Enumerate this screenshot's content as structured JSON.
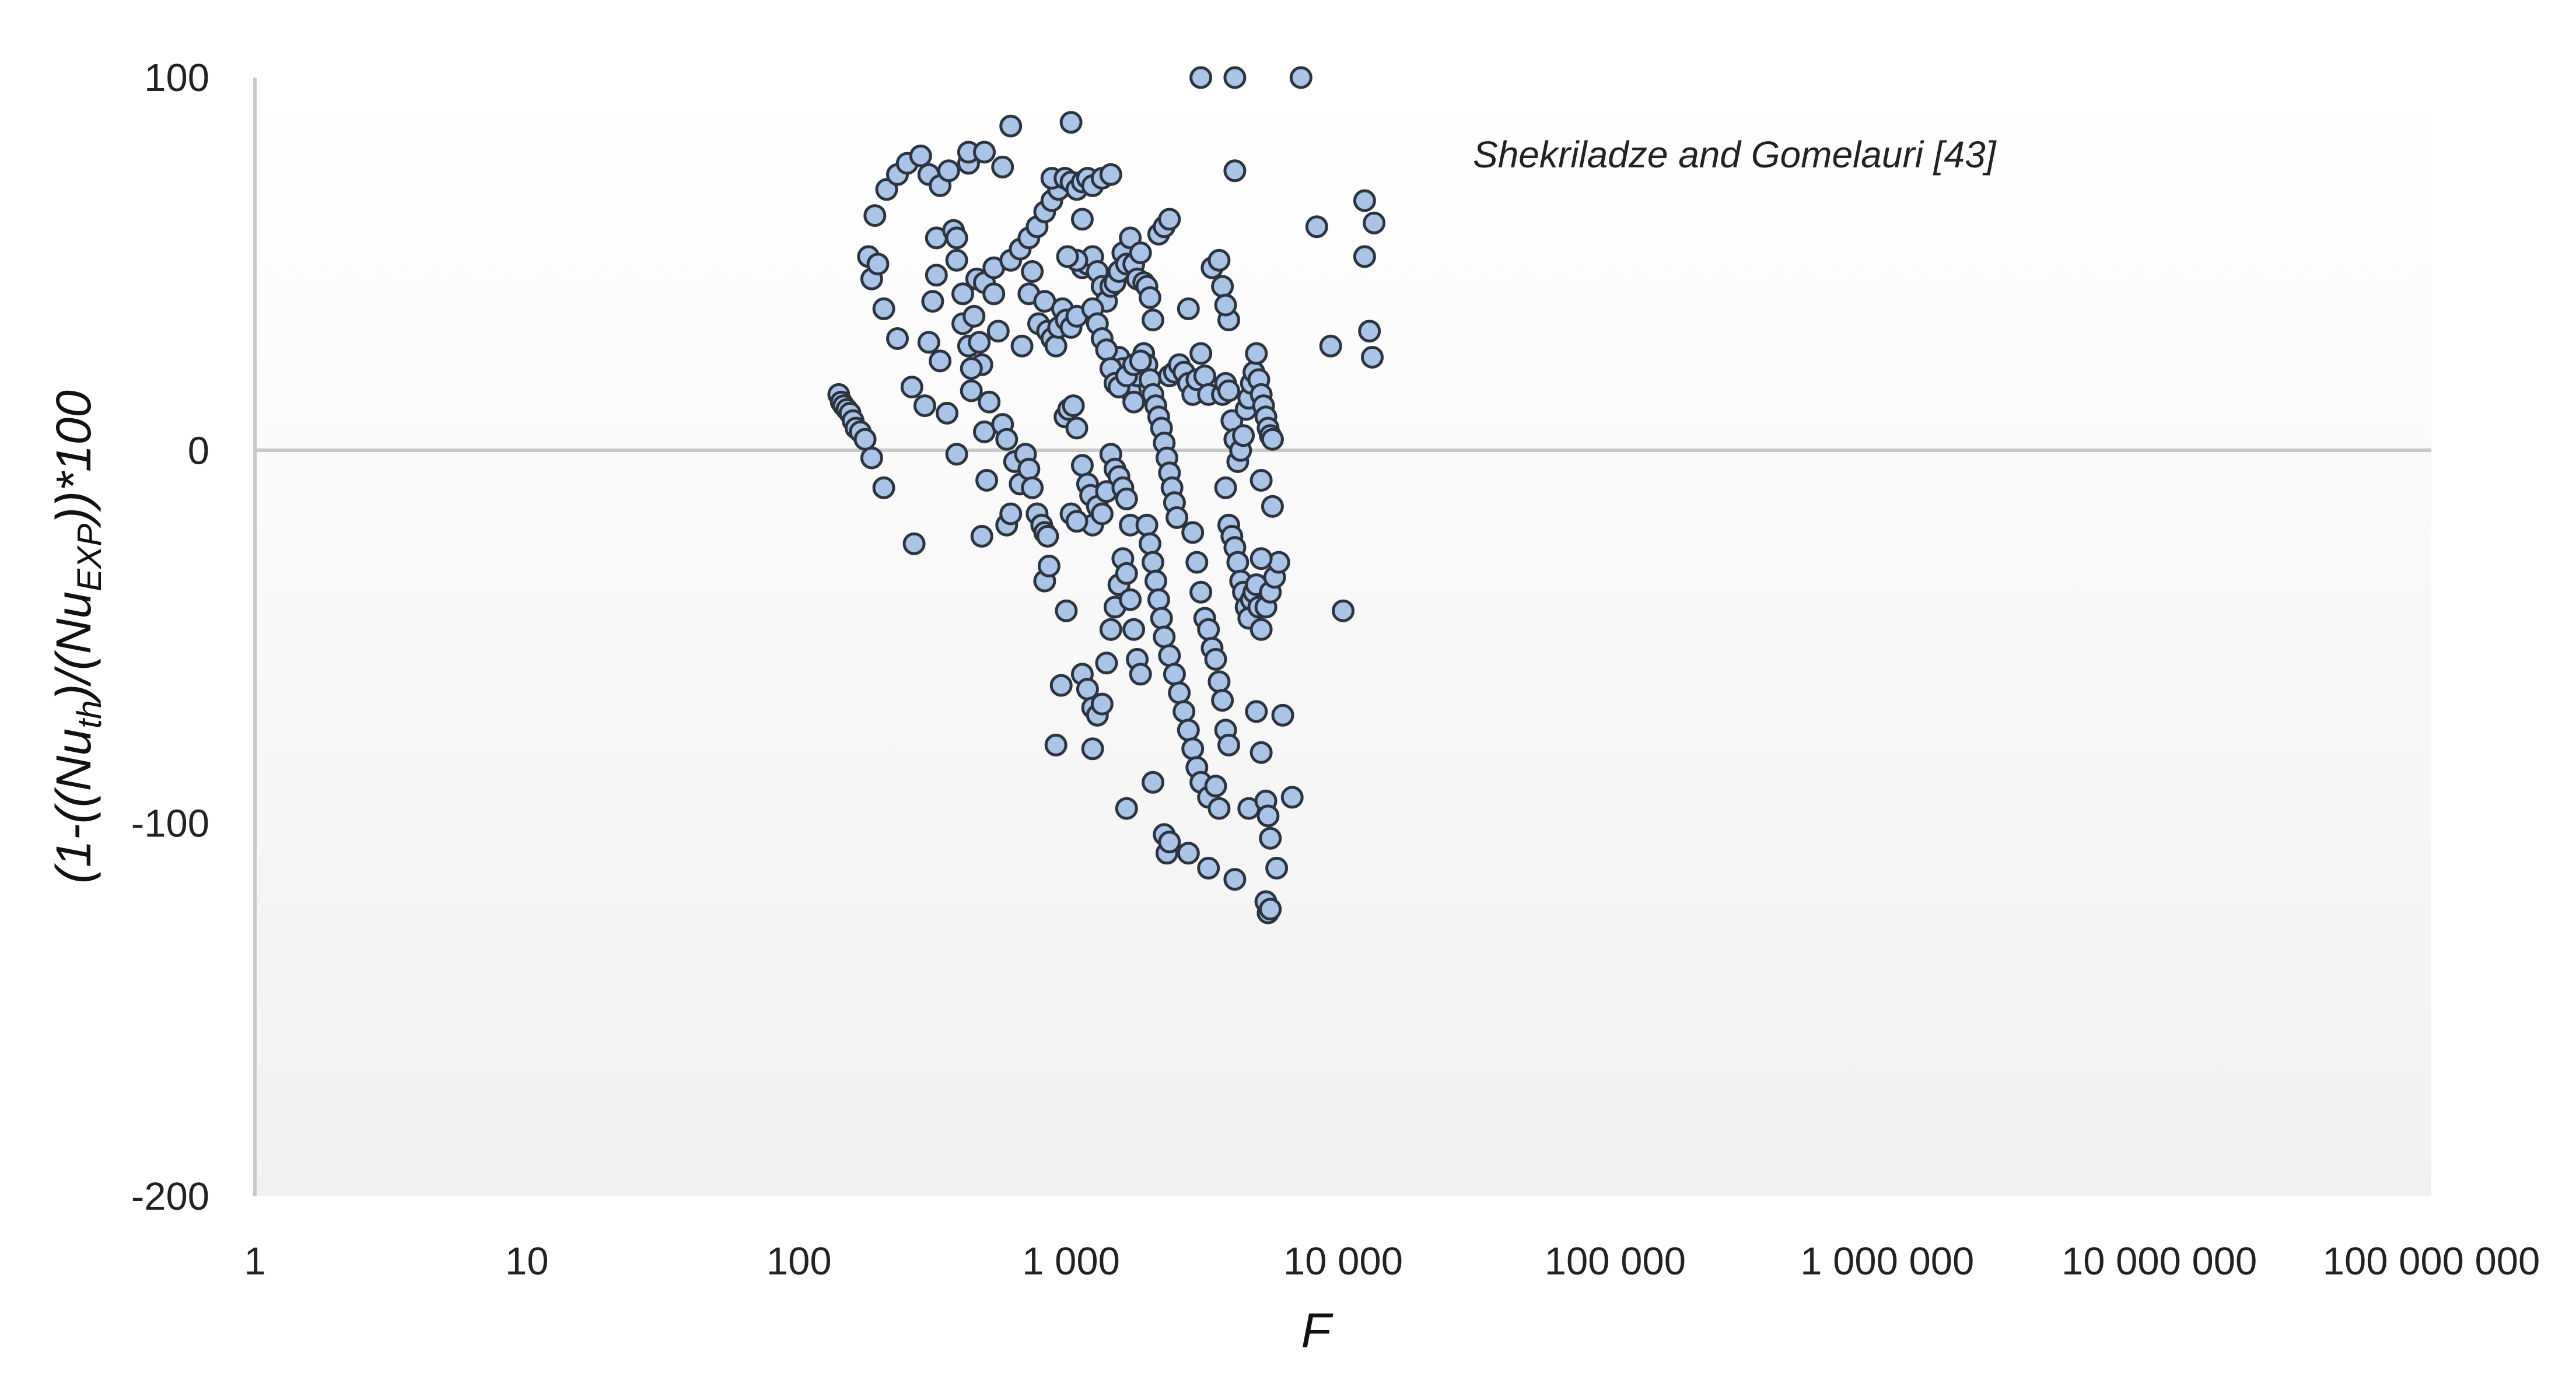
{
  "chart_data": {
    "type": "scatter",
    "xscale": "log",
    "xlim": [
      1,
      100000000
    ],
    "ylim": [
      -200,
      100
    ],
    "x_tick_labels": [
      "1",
      "10",
      "100",
      "1 000",
      "10 000",
      "100 000",
      "1 000 000",
      "10 000 000",
      "100 000 000"
    ],
    "y_tick_labels": [
      "100",
      "0",
      "-100",
      "-200"
    ],
    "xlabel": "F",
    "ylabel": {
      "prefix": "(1-((Nu",
      "sub1": "th",
      "middle": ")/(Nu",
      "sub2": "EXP",
      "suffix": "))*100"
    },
    "annotation": "Shekriladze and Gomelauri [43]",
    "grid": false,
    "legend": "none",
    "colors": {
      "marker_fill": "#a9c4e6",
      "marker_edge": "#2c3440",
      "axis": "#c8c8c8",
      "plot_bg_top": "#ffffff",
      "plot_bg_bottom": "#f1f1f1"
    },
    "series": [
      {
        "points": [
          [
            140,
            15
          ],
          [
            143,
            13
          ],
          [
            146,
            12
          ],
          [
            150,
            11
          ],
          [
            154,
            10
          ],
          [
            158,
            8
          ],
          [
            162,
            6
          ],
          [
            168,
            5
          ],
          [
            175,
            3
          ],
          [
            185,
            -2
          ],
          [
            205,
            -10
          ],
          [
            265,
            -25
          ],
          [
            180,
            52
          ],
          [
            185,
            46
          ],
          [
            195,
            50
          ],
          [
            205,
            38
          ],
          [
            190,
            63
          ],
          [
            210,
            70
          ],
          [
            230,
            74
          ],
          [
            250,
            77
          ],
          [
            280,
            79
          ],
          [
            300,
            74
          ],
          [
            330,
            71
          ],
          [
            355,
            75
          ],
          [
            420,
            77
          ],
          [
            420,
            80
          ],
          [
            480,
            80
          ],
          [
            560,
            76
          ],
          [
            600,
            87
          ],
          [
            1000,
            88
          ],
          [
            230,
            30
          ],
          [
            260,
            17
          ],
          [
            290,
            12
          ],
          [
            300,
            29
          ],
          [
            310,
            40
          ],
          [
            320,
            47
          ],
          [
            330,
            24
          ],
          [
            320,
            57
          ],
          [
            370,
            59
          ],
          [
            380,
            57
          ],
          [
            380,
            51
          ],
          [
            350,
            10
          ],
          [
            400,
            42
          ],
          [
            400,
            34
          ],
          [
            420,
            28
          ],
          [
            440,
            36
          ],
          [
            450,
            46
          ],
          [
            460,
            29
          ],
          [
            470,
            23
          ],
          [
            480,
            45
          ],
          [
            430,
            22
          ],
          [
            430,
            16
          ],
          [
            480,
            5
          ],
          [
            470,
            -23
          ],
          [
            490,
            -8
          ],
          [
            500,
            13
          ],
          [
            520,
            42
          ],
          [
            520,
            49
          ],
          [
            540,
            32
          ],
          [
            380,
            -1
          ],
          [
            560,
            7
          ],
          [
            580,
            3
          ],
          [
            580,
            -20
          ],
          [
            600,
            -17
          ],
          [
            620,
            -3
          ],
          [
            650,
            -9
          ],
          [
            680,
            -1
          ],
          [
            700,
            -5
          ],
          [
            720,
            -10
          ],
          [
            750,
            -17
          ],
          [
            780,
            -20
          ],
          [
            800,
            -22
          ],
          [
            820,
            -23
          ],
          [
            800,
            -35
          ],
          [
            830,
            -31
          ],
          [
            880,
            -79
          ],
          [
            920,
            -63
          ],
          [
            960,
            -43
          ],
          [
            600,
            51
          ],
          [
            650,
            54
          ],
          [
            700,
            57
          ],
          [
            750,
            60
          ],
          [
            800,
            64
          ],
          [
            850,
            67
          ],
          [
            900,
            70
          ],
          [
            850,
            73
          ],
          [
            950,
            73
          ],
          [
            1000,
            72
          ],
          [
            1050,
            70
          ],
          [
            1100,
            72
          ],
          [
            1150,
            73
          ],
          [
            1200,
            71
          ],
          [
            1300,
            73
          ],
          [
            1400,
            74
          ],
          [
            660,
            28
          ],
          [
            700,
            42
          ],
          [
            720,
            48
          ],
          [
            760,
            34
          ],
          [
            800,
            40
          ],
          [
            820,
            32
          ],
          [
            850,
            30
          ],
          [
            880,
            28
          ],
          [
            900,
            33
          ],
          [
            930,
            38
          ],
          [
            960,
            35
          ],
          [
            1000,
            33
          ],
          [
            1050,
            36
          ],
          [
            1100,
            49
          ],
          [
            1150,
            50
          ],
          [
            1200,
            52
          ],
          [
            1250,
            48
          ],
          [
            1300,
            44
          ],
          [
            1350,
            40
          ],
          [
            1400,
            44
          ],
          [
            1450,
            45
          ],
          [
            1500,
            48
          ],
          [
            1550,
            53
          ],
          [
            1600,
            50
          ],
          [
            1650,
            57
          ],
          [
            1700,
            50
          ],
          [
            1750,
            46
          ],
          [
            1800,
            53
          ],
          [
            1850,
            45
          ],
          [
            1900,
            44
          ],
          [
            1950,
            41
          ],
          [
            2000,
            35
          ],
          [
            2100,
            58
          ],
          [
            2200,
            60
          ],
          [
            2300,
            62
          ],
          [
            1100,
            62
          ],
          [
            1050,
            51
          ],
          [
            970,
            52
          ],
          [
            950,
            9
          ],
          [
            980,
            11
          ],
          [
            1020,
            12
          ],
          [
            1050,
            6
          ],
          [
            1100,
            -4
          ],
          [
            1150,
            -9
          ],
          [
            1180,
            -12
          ],
          [
            1200,
            -20
          ],
          [
            1250,
            -15
          ],
          [
            1300,
            -17
          ],
          [
            1350,
            -11
          ],
          [
            1400,
            -1
          ],
          [
            1450,
            -5
          ],
          [
            1500,
            -7
          ],
          [
            1550,
            -10
          ],
          [
            1600,
            -13
          ],
          [
            1650,
            -20
          ],
          [
            1000,
            -17
          ],
          [
            1050,
            -19
          ],
          [
            1100,
            -60
          ],
          [
            1150,
            -64
          ],
          [
            1200,
            -69
          ],
          [
            1250,
            -71
          ],
          [
            1300,
            -68
          ],
          [
            1350,
            -57
          ],
          [
            1400,
            -48
          ],
          [
            1450,
            -42
          ],
          [
            1500,
            -36
          ],
          [
            1550,
            -29
          ],
          [
            1600,
            -33
          ],
          [
            1650,
            -40
          ],
          [
            1700,
            -48
          ],
          [
            1750,
            -56
          ],
          [
            1800,
            -60
          ],
          [
            1200,
            -80
          ],
          [
            1600,
            -96
          ],
          [
            2000,
            -89
          ],
          [
            1500,
            25
          ],
          [
            1550,
            22
          ],
          [
            1600,
            19
          ],
          [
            1650,
            16
          ],
          [
            1700,
            13
          ],
          [
            1750,
            20
          ],
          [
            1800,
            24
          ],
          [
            1850,
            26
          ],
          [
            1900,
            23
          ],
          [
            1950,
            19
          ],
          [
            2000,
            15
          ],
          [
            2050,
            12
          ],
          [
            2100,
            9
          ],
          [
            2150,
            6
          ],
          [
            2200,
            2
          ],
          [
            2250,
            -2
          ],
          [
            2300,
            -6
          ],
          [
            2350,
            -10
          ],
          [
            2400,
            -14
          ],
          [
            2450,
            -18
          ],
          [
            1900,
            -20
          ],
          [
            1950,
            -25
          ],
          [
            2000,
            -30
          ],
          [
            2050,
            -35
          ],
          [
            2100,
            -40
          ],
          [
            2150,
            -45
          ],
          [
            2200,
            -50
          ],
          [
            2300,
            -55
          ],
          [
            2400,
            -60
          ],
          [
            2500,
            -65
          ],
          [
            2600,
            -70
          ],
          [
            2700,
            -75
          ],
          [
            2800,
            -80
          ],
          [
            2900,
            -85
          ],
          [
            3000,
            -89
          ],
          [
            2200,
            -103
          ],
          [
            2250,
            -108
          ],
          [
            2300,
            -105
          ],
          [
            2700,
            -108
          ],
          [
            3200,
            -112
          ],
          [
            1200,
            38
          ],
          [
            1250,
            34
          ],
          [
            1300,
            30
          ],
          [
            1350,
            27
          ],
          [
            1400,
            22
          ],
          [
            1450,
            18
          ],
          [
            1500,
            17
          ],
          [
            1600,
            20
          ],
          [
            1700,
            23
          ],
          [
            1800,
            24
          ],
          [
            2300,
            20
          ],
          [
            2400,
            21
          ],
          [
            2500,
            23
          ],
          [
            2600,
            21
          ],
          [
            2700,
            18
          ],
          [
            2800,
            15
          ],
          [
            2900,
            19
          ],
          [
            3000,
            26
          ],
          [
            3100,
            20
          ],
          [
            3200,
            15
          ],
          [
            2800,
            -22
          ],
          [
            2900,
            -30
          ],
          [
            3000,
            -38
          ],
          [
            3100,
            -45
          ],
          [
            3200,
            -48
          ],
          [
            3300,
            -53
          ],
          [
            3400,
            -56
          ],
          [
            3500,
            -62
          ],
          [
            3600,
            -67
          ],
          [
            3700,
            -75
          ],
          [
            3800,
            -79
          ],
          [
            3200,
            -93
          ],
          [
            3400,
            -90
          ],
          [
            3500,
            -96
          ],
          [
            3000,
            100
          ],
          [
            4000,
            100
          ],
          [
            7000,
            100
          ],
          [
            4000,
            75
          ],
          [
            2700,
            38
          ],
          [
            3300,
            49
          ],
          [
            3500,
            51
          ],
          [
            3600,
            44
          ],
          [
            3800,
            35
          ],
          [
            3700,
            39
          ],
          [
            3600,
            15
          ],
          [
            3700,
            18
          ],
          [
            3800,
            16
          ],
          [
            3900,
            8
          ],
          [
            4000,
            3
          ],
          [
            4100,
            -3
          ],
          [
            4200,
            0
          ],
          [
            4300,
            4
          ],
          [
            4400,
            11
          ],
          [
            4500,
            14
          ],
          [
            4600,
            18
          ],
          [
            4700,
            21
          ],
          [
            4800,
            26
          ],
          [
            4900,
            19
          ],
          [
            5000,
            15
          ],
          [
            5100,
            12
          ],
          [
            5200,
            9
          ],
          [
            5300,
            6
          ],
          [
            5400,
            4
          ],
          [
            5500,
            3
          ],
          [
            3700,
            -10
          ],
          [
            3800,
            -20
          ],
          [
            3900,
            -23
          ],
          [
            4000,
            -26
          ],
          [
            4100,
            -30
          ],
          [
            4200,
            -35
          ],
          [
            4300,
            -38
          ],
          [
            4400,
            -42
          ],
          [
            4500,
            -45
          ],
          [
            4600,
            -40
          ],
          [
            4700,
            -38
          ],
          [
            4800,
            -36
          ],
          [
            4900,
            -42
          ],
          [
            5000,
            -48
          ],
          [
            5200,
            -42
          ],
          [
            5400,
            -38
          ],
          [
            5600,
            -34
          ],
          [
            5800,
            -30
          ],
          [
            5000,
            -8
          ],
          [
            5500,
            -15
          ],
          [
            4000,
            -115
          ],
          [
            4500,
            -96
          ],
          [
            4800,
            -70
          ],
          [
            5000,
            -81
          ],
          [
            5200,
            -94
          ],
          [
            5300,
            -98
          ],
          [
            5400,
            -104
          ],
          [
            5200,
            -121
          ],
          [
            5300,
            -124
          ],
          [
            5400,
            -123
          ],
          [
            5700,
            -112
          ],
          [
            6000,
            -71
          ],
          [
            6500,
            -93
          ],
          [
            5000,
            -29
          ],
          [
            8000,
            60
          ],
          [
            9000,
            28
          ],
          [
            12000,
            52
          ],
          [
            12000,
            67
          ],
          [
            13000,
            61
          ],
          [
            12500,
            32
          ],
          [
            12800,
            25
          ],
          [
            10000,
            -43
          ]
        ]
      }
    ]
  }
}
